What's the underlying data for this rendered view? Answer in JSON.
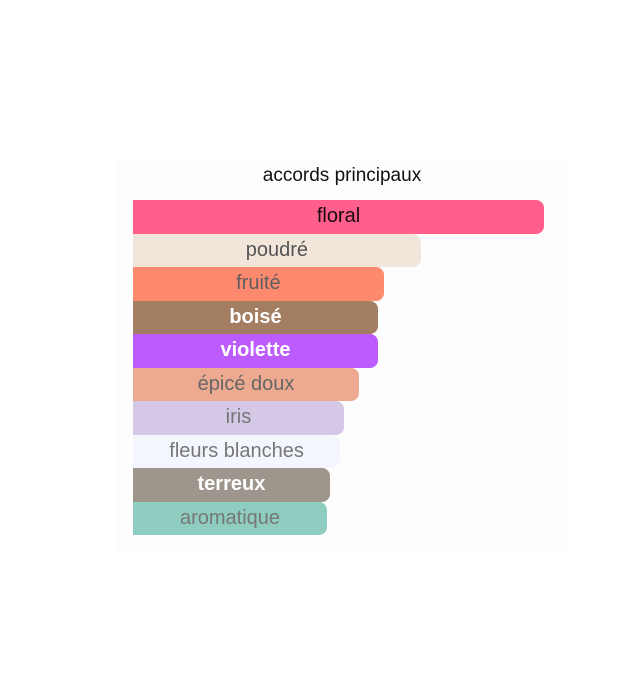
{
  "chart_data": {
    "type": "bar",
    "orientation": "horizontal",
    "title": "accords principaux",
    "unit": "percent of strongest accord",
    "categories": [
      "floral",
      "poudré",
      "fruité",
      "boisé",
      "violette",
      "épicé doux",
      "iris",
      "fleurs blanches",
      "terreux",
      "aromatique"
    ],
    "values": [
      100,
      70,
      61,
      59.6,
      59.6,
      55,
      51.3,
      50.4,
      47.9,
      47.2
    ],
    "colors": [
      "#ff5f8a",
      "#f2e5d9",
      "#fd8a6e",
      "#a47e62",
      "#bc5cff",
      "#eeaa90",
      "#d4c8e6",
      "#f3f6fc",
      "#9e958c",
      "#8ecdbf"
    ],
    "label_colors": [
      "#1a0a12",
      "#555555",
      "#5e5e5e",
      "#ffffff",
      "#ffffff",
      "#666666",
      "#777777",
      "#777777",
      "#ffffff",
      "#777777"
    ],
    "label_bold": [
      false,
      false,
      false,
      true,
      true,
      false,
      false,
      false,
      true,
      false
    ],
    "xlim": [
      0,
      100
    ],
    "grid": false,
    "legend": "none"
  }
}
